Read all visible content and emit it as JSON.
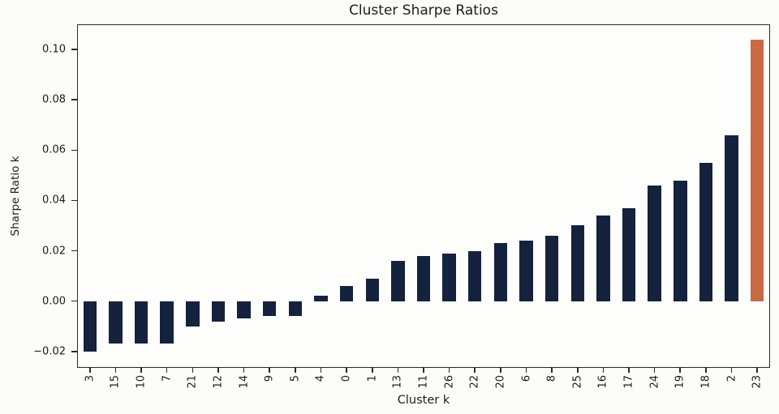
{
  "chart_data": {
    "type": "bar",
    "title": "Cluster Sharpe Ratios",
    "xlabel": "Cluster k",
    "ylabel": "Sharpe Ratio k",
    "categories": [
      "3",
      "15",
      "10",
      "7",
      "21",
      "12",
      "14",
      "9",
      "5",
      "4",
      "0",
      "1",
      "13",
      "11",
      "26",
      "22",
      "20",
      "6",
      "8",
      "25",
      "16",
      "17",
      "24",
      "19",
      "18",
      "2",
      "23"
    ],
    "values": [
      -0.02,
      -0.017,
      -0.017,
      -0.017,
      -0.01,
      -0.008,
      -0.007,
      -0.006,
      -0.006,
      0.002,
      0.006,
      0.009,
      0.016,
      0.018,
      0.019,
      0.02,
      0.023,
      0.024,
      0.026,
      0.03,
      0.034,
      0.037,
      0.046,
      0.048,
      0.055,
      0.066,
      0.104
    ],
    "highlight_category": "23",
    "bar_color": "#15223E",
    "highlight_color": "#C86A43",
    "axis_color": "#2a2a2a",
    "bar_width_frac": 0.52,
    "ylim": [
      -0.0265,
      0.11
    ],
    "yticks": [
      0.1,
      0.08,
      0.06,
      0.04,
      0.02,
      0.0,
      -0.02
    ],
    "ytick_labels": [
      "0.10",
      "0.08",
      "0.06",
      "0.04",
      "0.02",
      "0.00",
      "−0.02"
    ],
    "grid": false,
    "legend": null
  }
}
